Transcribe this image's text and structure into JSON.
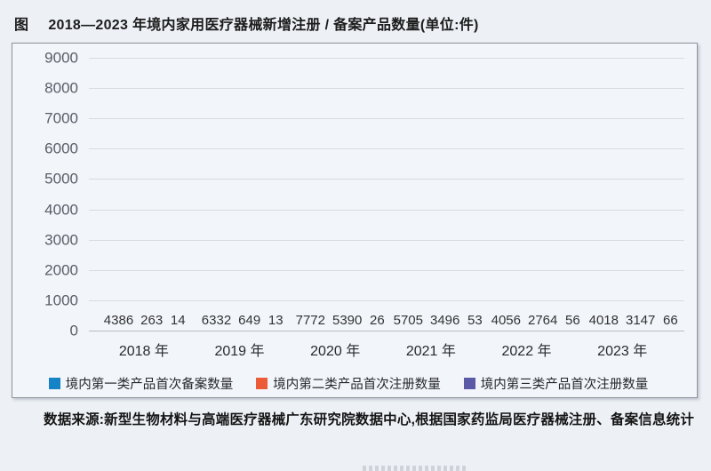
{
  "title": {
    "prefix": "图",
    "text": "2018—2023 年境内家用医疗器械新增注册 / 备案产品数量(单位:件)"
  },
  "chart_data": {
    "type": "bar",
    "categories": [
      "2018 年",
      "2019 年",
      "2020 年",
      "2021 年",
      "2022 年",
      "2023 年"
    ],
    "series": [
      {
        "name": "境内第一类产品首次备案数量",
        "color": "#1583c5",
        "values": [
          4386,
          6332,
          7772,
          5705,
          4056,
          4018
        ]
      },
      {
        "name": "境内第二类产品首次注册数量",
        "color": "#ec5b38",
        "values": [
          263,
          649,
          5390,
          3496,
          2764,
          3147
        ]
      },
      {
        "name": "境内第三类产品首次注册数量",
        "color": "#5a5aa6",
        "values": [
          14,
          13,
          26,
          53,
          56,
          66
        ]
      }
    ],
    "ylim": [
      0,
      9000
    ],
    "ytick_step": 1000,
    "yticks": [
      "9000",
      "8000",
      "7000",
      "6000",
      "5000",
      "4000",
      "3000",
      "2000",
      "1000",
      "0"
    ],
    "grid": true,
    "legend_position": "bottom",
    "xlabel": "",
    "ylabel": ""
  },
  "source_note": "数据来源:新型生物材料与高端医疗器械广东研究院数据中心,根据国家药监局医疗器械注册、备案信息统计"
}
